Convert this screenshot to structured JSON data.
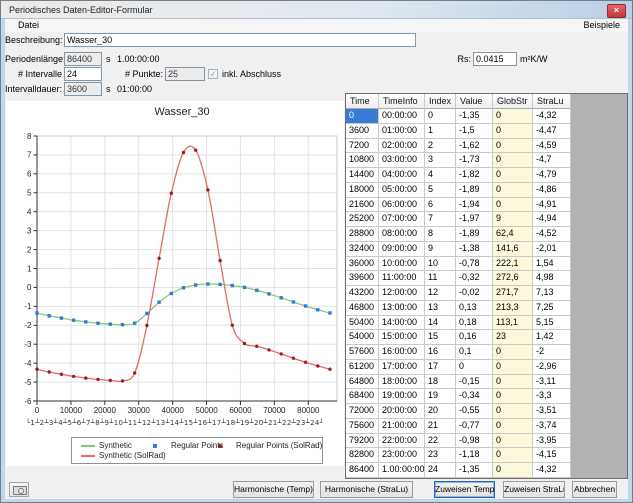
{
  "window": {
    "title": "Periodisches Daten-Editor-Formular",
    "close_glyph": "×"
  },
  "menubar": {
    "left_item": "Datei",
    "right_item": "Beispiele"
  },
  "form": {
    "beschreibung": {
      "label": "Beschreibung:",
      "value": "Wasser_30"
    },
    "periodenlaenge": {
      "label": "Periodenlänge:",
      "value": "86400",
      "unit": "s",
      "info": "1.00:00:00"
    },
    "rs": {
      "label": "Rs:",
      "value": "0.0415",
      "unit": "m²K/W"
    },
    "intervalle": {
      "label": "# Intervalle",
      "value": "24"
    },
    "punkte": {
      "label": "# Punkte:",
      "value": "25"
    },
    "abschluss": {
      "label": "inkl. Abschluss",
      "checked": true,
      "check_glyph": "✓"
    },
    "intervalldauer": {
      "label": "Intervalldauer:",
      "value": "3600",
      "unit": "s",
      "info": "01:00:00"
    }
  },
  "table": {
    "columns": [
      "Time",
      "TimeInfo",
      "Index",
      "Value",
      "GlobStr",
      "StraLu"
    ],
    "highlight_col": 4,
    "highlight_color": "#fbf8dc",
    "selected": {
      "row": 0,
      "col": 0
    },
    "selection_color": "#3a7bd5",
    "rows": [
      [
        "0",
        "00:00:00",
        "0",
        "-1,35",
        "0",
        "-4,32"
      ],
      [
        "3600",
        "01:00:00",
        "1",
        "-1,5",
        "0",
        "-4,47"
      ],
      [
        "7200",
        "02:00:00",
        "2",
        "-1,62",
        "0",
        "-4,59"
      ],
      [
        "10800",
        "03:00:00",
        "3",
        "-1,73",
        "0",
        "-4,7"
      ],
      [
        "14400",
        "04:00:00",
        "4",
        "-1,82",
        "0",
        "-4,79"
      ],
      [
        "18000",
        "05:00:00",
        "5",
        "-1,89",
        "0",
        "-4,86"
      ],
      [
        "21600",
        "06:00:00",
        "6",
        "-1,94",
        "0",
        "-4,91"
      ],
      [
        "25200",
        "07:00:00",
        "7",
        "-1,97",
        "9",
        "-4,94"
      ],
      [
        "28800",
        "08:00:00",
        "8",
        "-1,89",
        "62,4",
        "-4,52"
      ],
      [
        "32400",
        "09:00:00",
        "9",
        "-1,38",
        "141,6",
        "-2,01"
      ],
      [
        "36000",
        "10:00:00",
        "10",
        "-0,78",
        "222,1",
        "1,54"
      ],
      [
        "39600",
        "11:00:00",
        "11",
        "-0,32",
        "272,6",
        "4,98"
      ],
      [
        "43200",
        "12:00:00",
        "12",
        "-0,02",
        "271,7",
        "7,13"
      ],
      [
        "46800",
        "13:00:00",
        "13",
        "0,13",
        "213,3",
        "7,25"
      ],
      [
        "50400",
        "14:00:00",
        "14",
        "0,18",
        "113,1",
        "5,15"
      ],
      [
        "54000",
        "15:00:00",
        "15",
        "0,16",
        "23",
        "1,42"
      ],
      [
        "57600",
        "16:00:00",
        "16",
        "0,1",
        "0",
        "-2"
      ],
      [
        "61200",
        "17:00:00",
        "17",
        "0",
        "0",
        "-2,96"
      ],
      [
        "64800",
        "18:00:00",
        "18",
        "-0,15",
        "0",
        "-3,11"
      ],
      [
        "68400",
        "19:00:00",
        "19",
        "-0,34",
        "0",
        "-3,3"
      ],
      [
        "72000",
        "20:00:00",
        "20",
        "-0,55",
        "0",
        "-3,51"
      ],
      [
        "75600",
        "21:00:00",
        "21",
        "-0,77",
        "0",
        "-3,74"
      ],
      [
        "79200",
        "22:00:00",
        "22",
        "-0,98",
        "0",
        "-3,95"
      ],
      [
        "82800",
        "23:00:00",
        "23",
        "-1,18",
        "0",
        "-4,15"
      ],
      [
        "86400",
        "1.00:00:00",
        "24",
        "-1,35",
        "0",
        "-4,32"
      ]
    ]
  },
  "chart_data": {
    "type": "line",
    "title": "Wasser_30",
    "xlabel": "",
    "ylabel": "",
    "xlim": [
      0,
      88500
    ],
    "ylim": [
      -6,
      8
    ],
    "xticks": [
      0,
      10000,
      20000,
      30000,
      40000,
      50000,
      60000,
      70000,
      80000
    ],
    "ytick_step": 1,
    "grid": true,
    "legend_position": "bottom",
    "x": [
      0,
      3600,
      7200,
      10800,
      14400,
      18000,
      21600,
      25200,
      28800,
      32400,
      36000,
      39600,
      43200,
      46800,
      50400,
      54000,
      57600,
      61200,
      64800,
      68400,
      72000,
      75600,
      79200,
      82800,
      86400
    ],
    "series": [
      {
        "name": "Synthetic",
        "type": "smooth-line",
        "color": "#85c97e",
        "values": [
          -1.35,
          -1.5,
          -1.62,
          -1.73,
          -1.82,
          -1.89,
          -1.94,
          -1.97,
          -1.89,
          -1.38,
          -0.78,
          -0.32,
          -0.02,
          0.13,
          0.18,
          0.16,
          0.1,
          0,
          -0.15,
          -0.34,
          -0.55,
          -0.77,
          -0.98,
          -1.18,
          -1.35
        ]
      },
      {
        "name": "Synthetic (SolRad)",
        "type": "smooth-line",
        "color": "#e56a6a",
        "values": [
          -4.32,
          -4.47,
          -4.59,
          -4.7,
          -4.79,
          -4.86,
          -4.91,
          -4.94,
          -4.52,
          -2.01,
          1.54,
          4.98,
          7.13,
          7.25,
          5.15,
          1.42,
          -2,
          -2.96,
          -3.11,
          -3.3,
          -3.51,
          -3.74,
          -3.95,
          -4.15,
          -4.32
        ]
      },
      {
        "name": "Regular Points",
        "type": "points",
        "marker": "square",
        "color": "#2e7cd6",
        "values": [
          -1.35,
          -1.5,
          -1.62,
          -1.73,
          -1.82,
          -1.89,
          -1.94,
          -1.97,
          -1.89,
          -1.38,
          -0.78,
          -0.32,
          -0.02,
          0.13,
          0.18,
          0.16,
          0.1,
          0,
          -0.15,
          -0.34,
          -0.55,
          -0.77,
          -0.98,
          -1.18,
          -1.35
        ]
      },
      {
        "name": "Regular Points (SolRad)",
        "type": "points",
        "marker": "dot",
        "color": "#9b1e1e",
        "values": [
          -4.32,
          -4.47,
          -4.59,
          -4.7,
          -4.79,
          -4.86,
          -4.91,
          -4.94,
          -4.52,
          -2.01,
          1.54,
          4.98,
          7.13,
          7.25,
          5.15,
          1.42,
          -2,
          -2.96,
          -3.11,
          -3.3,
          -3.51,
          -3.74,
          -3.95,
          -4.15,
          -4.32
        ]
      }
    ],
    "legend": [
      {
        "label": "Synthetic",
        "swatch": "line",
        "color": "#85c97e"
      },
      {
        "label": "Synthetic (SolRad)",
        "swatch": "line",
        "color": "#e56a6a"
      },
      {
        "label": "Regular Points",
        "swatch": "square",
        "color": "#2e7cd6"
      },
      {
        "label": "Regular Points (SolRad)",
        "swatch": "dot",
        "color": "#9b1e1e"
      }
    ],
    "interval_labels": [
      1,
      2,
      3,
      4,
      5,
      6,
      7,
      8,
      9,
      10,
      11,
      12,
      13,
      14,
      15,
      16,
      17,
      18,
      19,
      20,
      21,
      22,
      23,
      24
    ]
  },
  "buttons": {
    "harmonische_temp": "Harmonische (Temp)",
    "harmonische_stralu": "Harmonische (StraLu)",
    "zuweisen_temp": "Zuweisen Temp",
    "zuweisen_stralu": "Zuweisen StraLu",
    "abbrechen": "Abbrechen"
  },
  "icons": {
    "camera": "camera",
    "close": "close"
  },
  "colors": {
    "window_border": "#c3d6e9",
    "panel_gray": "#b2b2b2",
    "selection_blue": "#3a7bd5",
    "globstr_yellow": "#fbf8dc",
    "line_green": "#85c97e",
    "line_red": "#e56a6a",
    "point_blue": "#2e7cd6",
    "point_darkred": "#9b1e1e"
  }
}
